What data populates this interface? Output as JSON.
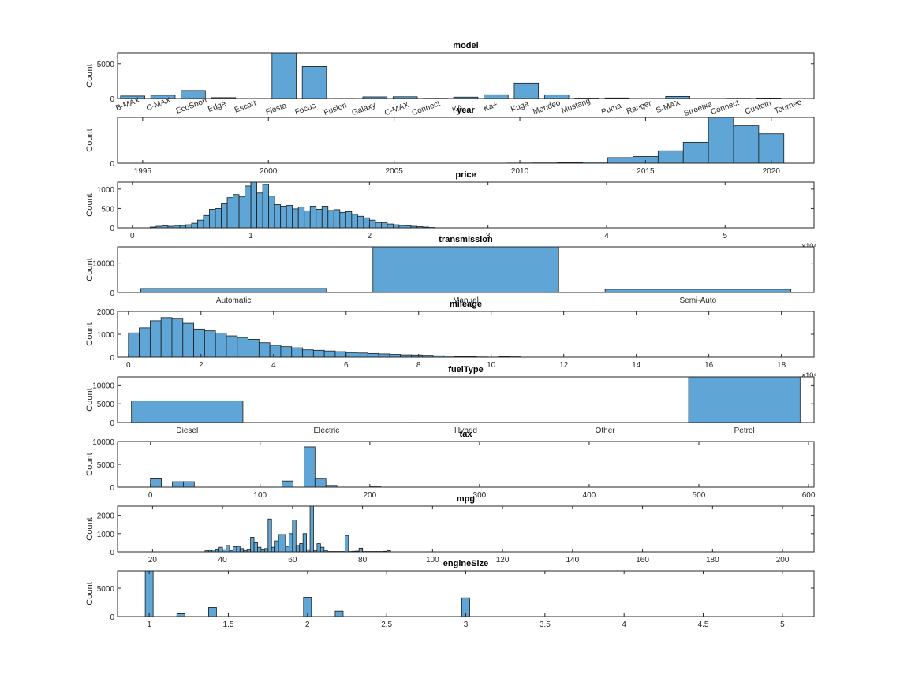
{
  "bar_fill": "#5fa6d6",
  "bar_edge": "#1a1a1a",
  "chart_data": [
    {
      "type": "bar",
      "title": "model",
      "ylabel": "Count",
      "categories": [
        "B-MAX",
        "C-MAX",
        "EcoSport",
        "Edge",
        "Escort",
        "Fiesta",
        "Focus",
        "Fusion",
        "Galaxy",
        "Grand C-MAX",
        "Grand Tourneo Connect",
        "KA",
        "Ka+",
        "Kuga",
        "Mondeo",
        "Mustang",
        "Puma",
        "Ranger",
        "S-MAX",
        "Streetka",
        "Tourneo Connect",
        "Tourneo Custom",
        "Transit Tourneo"
      ],
      "category_labels": [
        "B-MAX",
        "C-MAX",
        "EcoSport",
        "Edge",
        "Escort",
        "Fiesta",
        "Focus",
        "Fusion",
        "Galaxy",
        "C-MAX",
        "Connect",
        "KA",
        "Ka+",
        "Kuga",
        "Mondeo",
        "Mustang",
        "Puma",
        "Ranger",
        "S-MAX",
        "Streetka",
        "Connect",
        "Custom",
        "Tourneo"
      ],
      "values": [
        355,
        467,
        1143,
        125,
        1,
        6557,
        4588,
        16,
        228,
        247,
        33,
        199,
        531,
        2225,
        526,
        57,
        80,
        1,
        296,
        2,
        33,
        69,
        1
      ],
      "ylim": [
        0,
        6557
      ],
      "yticks": [
        0,
        5000
      ]
    },
    {
      "type": "histogram",
      "title": "year",
      "ylabel": "Count",
      "bin_edges": [
        2009.5,
        2010.5,
        2011.5,
        2012.5,
        2013.5,
        2014.5,
        2015.5,
        2016.5,
        2017.5,
        2018.5,
        2019.5,
        2020.5
      ],
      "values": [
        20,
        30,
        60,
        130,
        600,
        720,
        1330,
        2250,
        4900,
        4000,
        3150,
        280
      ],
      "xlim": [
        1994,
        2021.7
      ],
      "xticks": [
        1995,
        2000,
        2005,
        2010,
        2015,
        2020
      ],
      "xtick_labels": [
        "1995",
        "2000",
        "2005",
        "2010",
        "2015",
        "2020"
      ],
      "ylim": [
        0,
        4900
      ],
      "yticks": [
        0,
        5000
      ]
    },
    {
      "type": "histogram",
      "title": "price",
      "ylabel": "Count",
      "bin_start": 1500,
      "bin_width": 500,
      "values": [
        20,
        40,
        50,
        40,
        60,
        60,
        80,
        120,
        200,
        320,
        480,
        500,
        620,
        780,
        860,
        800,
        1080,
        1180,
        900,
        1120,
        820,
        600,
        560,
        580,
        490,
        540,
        440,
        560,
        480,
        560,
        450,
        470,
        400,
        420,
        350,
        300,
        260,
        200,
        140,
        130,
        100,
        80,
        60,
        50,
        40,
        30,
        20,
        10
      ],
      "xlim": [
        -1250,
        57500
      ],
      "xticks": [
        0,
        10000,
        20000,
        30000,
        40000,
        50000
      ],
      "xtick_labels": [
        "0",
        "1",
        "2",
        "3",
        "4",
        "5"
      ],
      "exponent_label": "×10⁴",
      "ylim": [
        0,
        1180
      ],
      "yticks": [
        0,
        500,
        1000
      ]
    },
    {
      "type": "bar",
      "title": "transmission",
      "ylabel": "Count",
      "categories": [
        "Automatic",
        "Manual",
        "Semi-Auto"
      ],
      "values": [
        1361,
        15517,
        1088
      ],
      "ylim": [
        0,
        15517
      ],
      "yticks": [
        0,
        10000
      ]
    },
    {
      "type": "histogram",
      "title": "mileage",
      "ylabel": "Count",
      "bin_start": 0,
      "bin_width": 3000,
      "values": [
        1060,
        1280,
        1590,
        1730,
        1700,
        1480,
        1230,
        1150,
        1050,
        930,
        860,
        780,
        630,
        520,
        460,
        410,
        320,
        300,
        270,
        240,
        200,
        180,
        160,
        140,
        120,
        100,
        95,
        80,
        60,
        50,
        30,
        20,
        10,
        5,
        20,
        15
      ],
      "xlim": [
        -3000,
        189000
      ],
      "xticks": [
        0,
        20000,
        40000,
        60000,
        80000,
        100000,
        120000,
        140000,
        160000,
        180000
      ],
      "xtick_labels": [
        "0",
        "2",
        "4",
        "6",
        "8",
        "10",
        "12",
        "14",
        "16",
        "18"
      ],
      "exponent_label": "×10⁴",
      "ylim": [
        0,
        2000
      ],
      "yticks": [
        0,
        1000,
        2000
      ]
    },
    {
      "type": "bar",
      "title": "fuelType",
      "ylabel": "Count",
      "categories": [
        "Diesel",
        "Electric",
        "Hybrid",
        "Other",
        "Petrol"
      ],
      "values": [
        5762,
        2,
        22,
        1,
        12179
      ],
      "ylim": [
        0,
        12179
      ],
      "yticks": [
        0,
        5000,
        10000
      ]
    },
    {
      "type": "histogram",
      "title": "tax",
      "ylabel": "Count",
      "bin_start": 0,
      "bin_width": 10,
      "values": [
        2000,
        0,
        1200,
        1200,
        0,
        0,
        0,
        0,
        0,
        0,
        0,
        0,
        1350,
        0,
        8800,
        1950,
        380,
        0,
        0,
        0,
        80
      ],
      "xlim": [
        -30,
        605
      ],
      "xticks": [
        0,
        100,
        200,
        300,
        400,
        500,
        600
      ],
      "xtick_labels": [
        "0",
        "100",
        "200",
        "300",
        "400",
        "500",
        "600"
      ],
      "ylim": [
        0,
        10000
      ],
      "yticks": [
        0,
        5000,
        10000
      ]
    },
    {
      "type": "histogram",
      "title": "mpg",
      "ylabel": "Count",
      "bin_start": 35,
      "bin_width": 1,
      "values": [
        60,
        80,
        100,
        150,
        250,
        120,
        350,
        60,
        280,
        300,
        180,
        60,
        150,
        800,
        500,
        250,
        150,
        180,
        1800,
        250,
        600,
        950,
        950,
        300,
        1000,
        1750,
        350,
        450,
        1000,
        120,
        2500,
        80,
        450,
        250,
        80,
        20,
        20,
        20,
        20,
        20,
        900,
        20,
        30,
        40,
        200,
        20,
        20,
        20,
        20,
        20,
        20,
        30,
        70
      ],
      "xlim": [
        10,
        209
      ],
      "xticks": [
        20,
        40,
        60,
        80,
        100,
        120,
        140,
        160,
        180,
        200
      ],
      "xtick_labels": [
        "20",
        "40",
        "60",
        "80",
        "100",
        "120",
        "140",
        "160",
        "180",
        "200"
      ],
      "ylim": [
        0,
        2500
      ],
      "yticks": [
        0,
        1000,
        2000
      ]
    },
    {
      "type": "histogram",
      "title": "engineSize",
      "ylabel": "Count",
      "bin_start": 0.975,
      "bin_width": 0.05,
      "values": [
        8050,
        0,
        0,
        0,
        500,
        0,
        0,
        0,
        1600,
        0,
        0,
        0,
        0,
        0,
        0,
        0,
        0,
        0,
        0,
        0,
        3400,
        0,
        0,
        0,
        950,
        0,
        0,
        0,
        0,
        0,
        0,
        0,
        0,
        0,
        0,
        0,
        0,
        0,
        0,
        0,
        3300
      ],
      "xlim": [
        0.8,
        5.2
      ],
      "xticks": [
        1,
        1.5,
        2,
        2.5,
        3,
        3.5,
        4,
        4.5,
        5
      ],
      "xtick_labels": [
        "1",
        "1.5",
        "2",
        "2.5",
        "3",
        "3.5",
        "4",
        "4.5",
        "5"
      ],
      "ylim": [
        0,
        8050
      ],
      "yticks": [
        0,
        5000
      ]
    }
  ]
}
